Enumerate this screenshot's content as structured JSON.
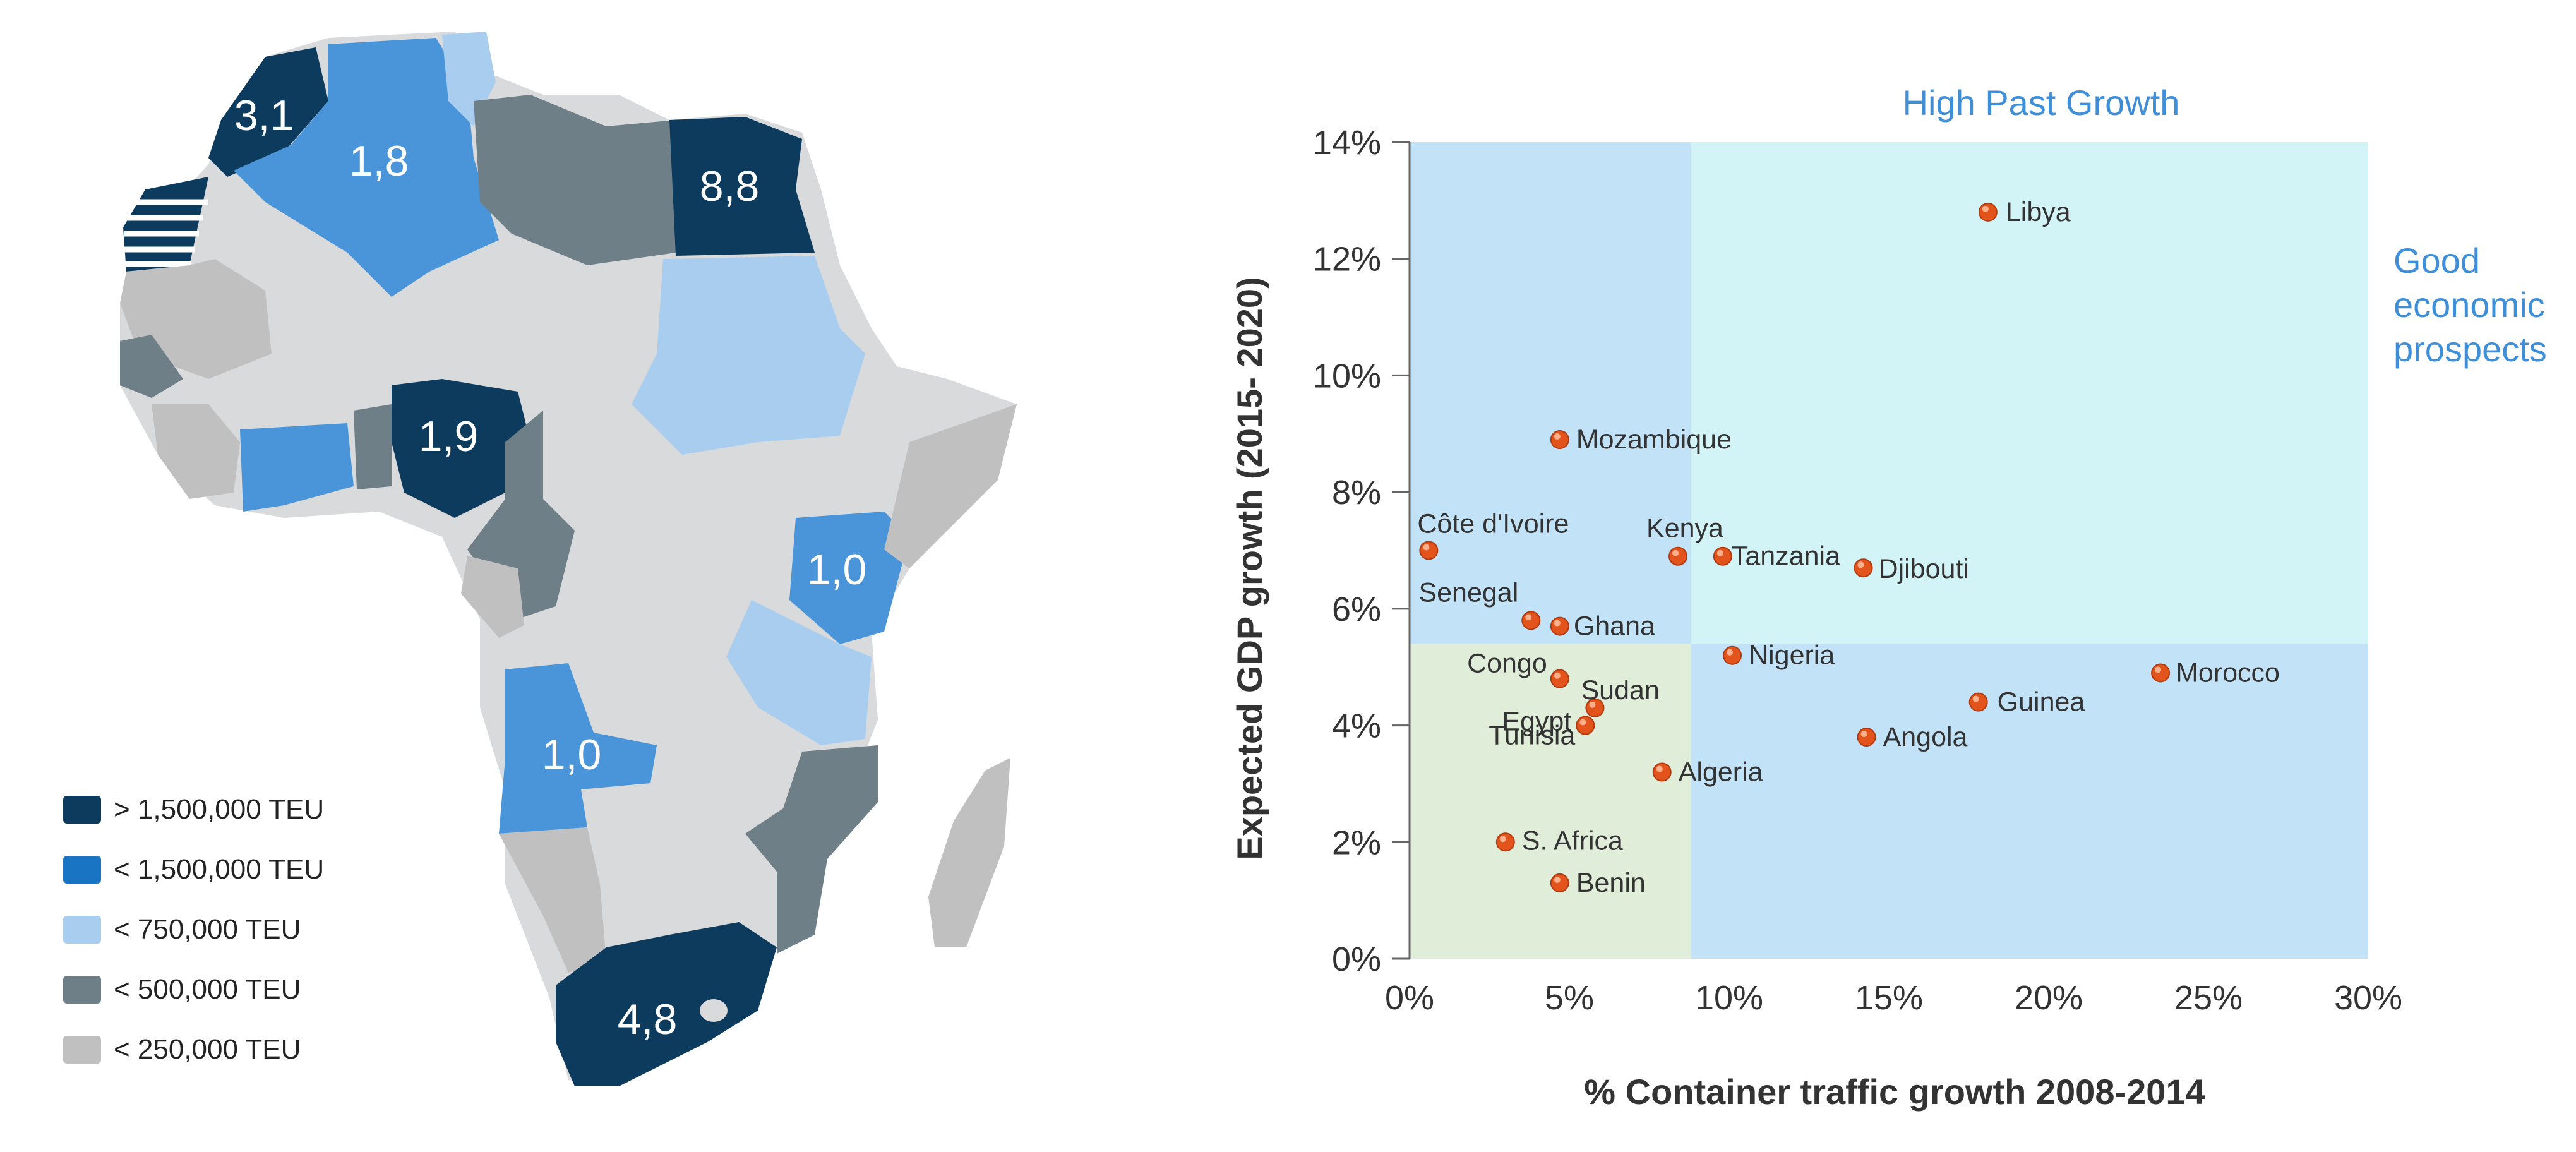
{
  "map": {
    "labels": {
      "morocco": "3,1",
      "algeria": "1,8",
      "egypt": "8,8",
      "nigeria": "1,9",
      "kenya": "1,0",
      "angola": "1,0",
      "south_africa": "4,8"
    },
    "legend": [
      {
        "label": "> 1,500,000 TEU",
        "color": "#0d3b5e"
      },
      {
        "label": "< 1,500,000 TEU",
        "color": "#1a74c4"
      },
      {
        "label": "< 750,000 TEU",
        "color": "#a9cdee"
      },
      {
        "label": "< 500,000 TEU",
        "color": "#6f7f87"
      },
      {
        "label": "< 250,000 TEU",
        "color": "#c0c0c0"
      }
    ],
    "colors": {
      "dark": "#0d3b5e",
      "mid": "#4a95d9",
      "light": "#a9cdee",
      "slate": "#6f7f87",
      "grey": "#c0c0c0",
      "base": "#d9dadc"
    }
  },
  "chart_data": {
    "type": "scatter",
    "xlabel": "% Container traffic growth  2008-2014",
    "ylabel": "Expected GDP growth (2015- 2020)",
    "xlim": [
      0,
      30
    ],
    "ylim": [
      0,
      14
    ],
    "xticks": [
      "0%",
      "5%",
      "10%",
      "15%",
      "20%",
      "25%",
      "30%"
    ],
    "yticks": [
      "0%",
      "2%",
      "4%",
      "6%",
      "8%",
      "10%",
      "12%",
      "14%"
    ],
    "quadrants": {
      "x_split": 8.8,
      "y_split": 5.4,
      "colors": {
        "top_left": "#c2e2f7",
        "top_right": "#d2f4f6",
        "bottom_left": "#e0edd9",
        "bottom_right": "#c2e2f7"
      }
    },
    "annotations": {
      "top": "High Past Growth",
      "right": [
        "Good",
        "economic",
        "prospects"
      ]
    },
    "point_color": "#e2541c",
    "points": [
      {
        "label": "Libya",
        "x": 18.1,
        "y": 12.8
      },
      {
        "label": "Mozambique",
        "x": 4.7,
        "y": 8.9
      },
      {
        "label": "Côte d'Ivoire",
        "x": 0.6,
        "y": 7.0
      },
      {
        "label": "Kenya",
        "x": 8.4,
        "y": 6.9
      },
      {
        "label": "Tanzania",
        "x": 9.8,
        "y": 6.9
      },
      {
        "label": "Djibouti",
        "x": 14.2,
        "y": 6.7
      },
      {
        "label": "Senegal",
        "x": 3.8,
        "y": 5.8
      },
      {
        "label": "Ghana",
        "x": 4.7,
        "y": 5.7
      },
      {
        "label": "Nigeria",
        "x": 10.1,
        "y": 5.2
      },
      {
        "label": "Morocco",
        "x": 23.5,
        "y": 4.9
      },
      {
        "label": "Congo",
        "x": 4.7,
        "y": 4.8
      },
      {
        "label": "Sudan",
        "x": 5.8,
        "y": 4.3
      },
      {
        "label": "Guinea",
        "x": 17.8,
        "y": 4.4
      },
      {
        "label": "Egypt",
        "x": 5.5,
        "y": 4.0
      },
      {
        "label": "Tunisia",
        "x": 5.5,
        "y": 4.0
      },
      {
        "label": "Angola",
        "x": 14.3,
        "y": 3.8
      },
      {
        "label": "Algeria",
        "x": 7.9,
        "y": 3.2
      },
      {
        "label": "S. Africa",
        "x": 3.0,
        "y": 2.0
      },
      {
        "label": "Benin",
        "x": 4.7,
        "y": 1.3
      }
    ]
  }
}
